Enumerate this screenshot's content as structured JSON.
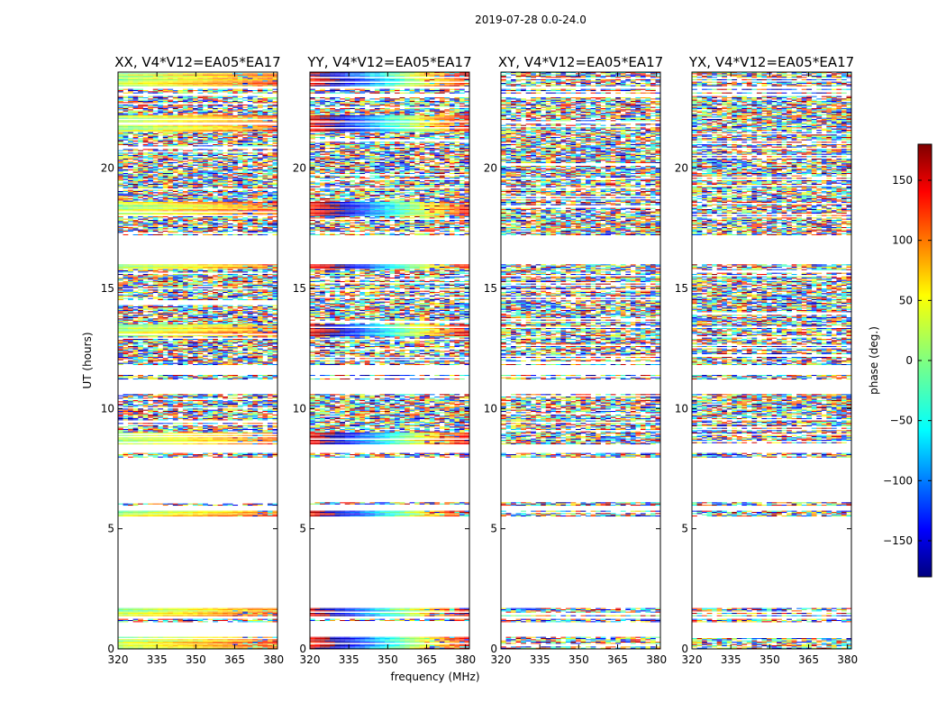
{
  "chart_data": {
    "type": "heatmap",
    "title": "2019-07-28 0.0-24.0",
    "xlabel": "frequency (MHz)",
    "ylabel": "UT (hours)",
    "xlim": [
      320,
      381.5
    ],
    "ylim": [
      0,
      24
    ],
    "xticks": [
      320,
      335,
      350,
      365,
      380
    ],
    "yticks": [
      0,
      5,
      10,
      15,
      20
    ],
    "colorbar": {
      "label": "phase (deg.)",
      "range": [
        -180,
        180
      ],
      "ticks": [
        150,
        100,
        50,
        0,
        -50,
        -100,
        -150
      ],
      "tick_labels": [
        "150",
        "100",
        "50",
        "0",
        "−50",
        "−100",
        "−150"
      ],
      "colormap": "jet"
    },
    "panels": [
      {
        "title": "XX, V4*V12=EA05*EA17",
        "phase_start": 10,
        "phase_slope": 1.5
      },
      {
        "title": "YY, V4*V12=EA05*EA17",
        "phase_start": 140,
        "phase_slope": 6.0
      },
      {
        "title": "XY, V4*V12=EA05*EA17",
        "phase_start": 0,
        "phase_slope": 0
      },
      {
        "title": "YX, V4*V12=EA05*EA17",
        "phase_start": 0,
        "phase_slope": 0
      }
    ],
    "data_bands_ut": [
      {
        "from": 0.0,
        "to": 0.5,
        "kind": "coherent"
      },
      {
        "from": 1.1,
        "to": 1.25,
        "kind": "noisy"
      },
      {
        "from": 1.35,
        "to": 1.7,
        "kind": "coherent"
      },
      {
        "from": 5.5,
        "to": 5.75,
        "kind": "coherent"
      },
      {
        "from": 5.95,
        "to": 6.1,
        "kind": "noisy"
      },
      {
        "from": 7.95,
        "to": 8.15,
        "kind": "noisy"
      },
      {
        "from": 8.5,
        "to": 9.0,
        "kind": "coherent"
      },
      {
        "from": 9.0,
        "to": 10.6,
        "kind": "noisy"
      },
      {
        "from": 11.2,
        "to": 11.4,
        "kind": "noisy"
      },
      {
        "from": 11.8,
        "to": 13.0,
        "kind": "noisy"
      },
      {
        "from": 13.0,
        "to": 13.5,
        "kind": "coherent"
      },
      {
        "from": 13.5,
        "to": 15.8,
        "kind": "noisy"
      },
      {
        "from": 15.8,
        "to": 16.0,
        "kind": "coherent"
      },
      {
        "from": 17.2,
        "to": 18.0,
        "kind": "noisy"
      },
      {
        "from": 18.0,
        "to": 18.6,
        "kind": "coherent"
      },
      {
        "from": 18.6,
        "to": 21.5,
        "kind": "noisy"
      },
      {
        "from": 21.5,
        "to": 22.2,
        "kind": "coherent"
      },
      {
        "from": 22.2,
        "to": 23.0,
        "kind": "noisy"
      },
      {
        "from": 23.1,
        "to": 23.3,
        "kind": "noisy"
      },
      {
        "from": 23.4,
        "to": 24.0,
        "kind": "coherent"
      }
    ]
  }
}
